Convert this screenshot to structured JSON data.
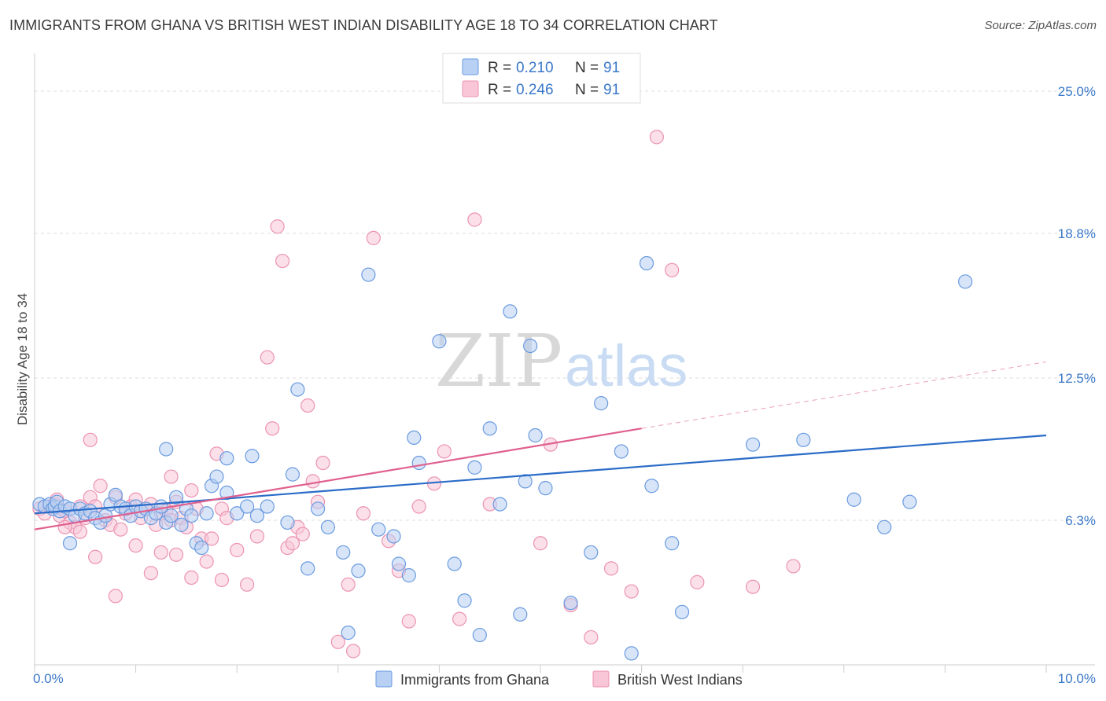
{
  "header": {
    "title": "IMMIGRANTS FROM GHANA VS BRITISH WEST INDIAN DISABILITY AGE 18 TO 34 CORRELATION CHART",
    "source": "Source: ZipAtlas.com"
  },
  "watermark": {
    "zip": "ZIP",
    "atlas": "atlas"
  },
  "chart_data": {
    "type": "scatter",
    "title": "IMMIGRANTS FROM GHANA VS BRITISH WEST INDIAN DISABILITY AGE 18 TO 34 CORRELATION CHART",
    "xlabel": "",
    "ylabel": "Disability Age 18 to 34",
    "xlim": [
      0,
      10
    ],
    "ylim": [
      0,
      26.3
    ],
    "x_tick_labels": [
      "0.0%",
      "10.0%"
    ],
    "y_ticks": [
      6.3,
      12.5,
      18.8,
      25.0
    ],
    "y_tick_labels": [
      "6.3%",
      "12.5%",
      "18.8%",
      "25.0%"
    ],
    "grid": true,
    "legend_top": {
      "placement": "top-center",
      "entries": [
        {
          "r_label": "R =",
          "r_value": "0.210",
          "n_label": "N =",
          "n_value": "91"
        },
        {
          "r_label": "R =",
          "r_value": "0.246",
          "n_label": "N =",
          "n_value": "91"
        }
      ]
    },
    "legend_bottom": {
      "placement": "bottom-center"
    },
    "series": [
      {
        "name": "Immigrants from Ghana",
        "color": "#6a9be0",
        "fill": "#b8d0f3",
        "trend": {
          "x": [
            0,
            10
          ],
          "y": [
            6.6,
            10.0
          ],
          "color": "#2b6cc8"
        },
        "points": [
          [
            0.05,
            7.0
          ],
          [
            0.1,
            6.9
          ],
          [
            0.15,
            7.0
          ],
          [
            0.18,
            6.8
          ],
          [
            0.2,
            6.9
          ],
          [
            0.22,
            7.1
          ],
          [
            0.25,
            6.7
          ],
          [
            0.3,
            6.9
          ],
          [
            0.35,
            6.8
          ],
          [
            0.4,
            6.5
          ],
          [
            0.45,
            6.8
          ],
          [
            0.5,
            6.6
          ],
          [
            0.55,
            6.7
          ],
          [
            0.6,
            6.4
          ],
          [
            0.65,
            6.2
          ],
          [
            0.7,
            6.5
          ],
          [
            0.75,
            7.0
          ],
          [
            0.8,
            7.4
          ],
          [
            0.85,
            6.9
          ],
          [
            0.9,
            6.8
          ],
          [
            0.95,
            6.5
          ],
          [
            1.0,
            6.9
          ],
          [
            1.05,
            6.7
          ],
          [
            1.1,
            6.8
          ],
          [
            1.15,
            6.4
          ],
          [
            1.2,
            6.6
          ],
          [
            1.25,
            6.9
          ],
          [
            1.3,
            6.2
          ],
          [
            1.35,
            6.5
          ],
          [
            1.4,
            7.3
          ],
          [
            1.45,
            6.1
          ],
          [
            1.5,
            6.8
          ],
          [
            1.55,
            6.5
          ],
          [
            1.6,
            5.3
          ],
          [
            1.65,
            5.1
          ],
          [
            1.7,
            6.6
          ],
          [
            1.75,
            7.8
          ],
          [
            1.8,
            8.2
          ],
          [
            1.9,
            7.5
          ],
          [
            2.0,
            6.6
          ],
          [
            2.1,
            6.9
          ],
          [
            2.2,
            6.5
          ],
          [
            2.3,
            6.9
          ],
          [
            2.5,
            6.2
          ],
          [
            2.55,
            8.3
          ],
          [
            2.6,
            12.0
          ],
          [
            2.7,
            4.2
          ],
          [
            2.8,
            6.8
          ],
          [
            2.9,
            6.0
          ],
          [
            3.05,
            4.9
          ],
          [
            3.1,
            1.4
          ],
          [
            3.2,
            4.1
          ],
          [
            3.3,
            17.0
          ],
          [
            3.4,
            5.9
          ],
          [
            3.55,
            5.6
          ],
          [
            3.6,
            4.4
          ],
          [
            3.7,
            3.9
          ],
          [
            3.75,
            9.9
          ],
          [
            3.8,
            8.8
          ],
          [
            4.0,
            14.1
          ],
          [
            4.15,
            4.4
          ],
          [
            4.25,
            2.8
          ],
          [
            4.35,
            8.6
          ],
          [
            4.4,
            1.3
          ],
          [
            4.5,
            10.3
          ],
          [
            4.6,
            7.0
          ],
          [
            4.7,
            15.4
          ],
          [
            4.8,
            2.2
          ],
          [
            4.85,
            8.0
          ],
          [
            4.9,
            13.9
          ],
          [
            4.95,
            10.0
          ],
          [
            5.05,
            7.7
          ],
          [
            5.3,
            2.7
          ],
          [
            5.5,
            4.9
          ],
          [
            5.6,
            11.4
          ],
          [
            5.8,
            9.3
          ],
          [
            5.9,
            0.5
          ],
          [
            6.05,
            17.5
          ],
          [
            6.1,
            7.8
          ],
          [
            6.3,
            5.3
          ],
          [
            6.4,
            2.3
          ],
          [
            7.1,
            9.6
          ],
          [
            7.6,
            9.8
          ],
          [
            8.1,
            7.2
          ],
          [
            8.4,
            6.0
          ],
          [
            8.65,
            7.1
          ],
          [
            9.2,
            16.7
          ],
          [
            0.35,
            5.3
          ],
          [
            1.3,
            9.4
          ],
          [
            2.15,
            9.1
          ],
          [
            1.9,
            9.0
          ]
        ]
      },
      {
        "name": "British West Indians",
        "color": "#ec93b2",
        "fill": "#f8c6d7",
        "trend": {
          "x": [
            0,
            6
          ],
          "y": [
            5.9,
            10.3
          ],
          "color": "#e0608f"
        },
        "trend_extension": {
          "x": [
            6,
            10
          ],
          "y": [
            10.3,
            13.2
          ]
        },
        "points": [
          [
            0.05,
            6.8
          ],
          [
            0.1,
            6.6
          ],
          [
            0.15,
            6.9
          ],
          [
            0.2,
            7.0
          ],
          [
            0.22,
            7.2
          ],
          [
            0.25,
            6.5
          ],
          [
            0.3,
            6.7
          ],
          [
            0.35,
            6.2
          ],
          [
            0.4,
            6.0
          ],
          [
            0.45,
            5.8
          ],
          [
            0.5,
            6.4
          ],
          [
            0.55,
            7.3
          ],
          [
            0.6,
            6.9
          ],
          [
            0.65,
            7.8
          ],
          [
            0.7,
            6.3
          ],
          [
            0.75,
            6.1
          ],
          [
            0.8,
            7.3
          ],
          [
            0.85,
            5.9
          ],
          [
            0.9,
            6.6
          ],
          [
            0.95,
            6.9
          ],
          [
            1.0,
            7.2
          ],
          [
            1.05,
            6.4
          ],
          [
            1.1,
            6.8
          ],
          [
            1.15,
            7.0
          ],
          [
            1.2,
            6.1
          ],
          [
            1.25,
            6.6
          ],
          [
            1.3,
            6.7
          ],
          [
            1.35,
            6.3
          ],
          [
            1.4,
            7.1
          ],
          [
            1.45,
            6.4
          ],
          [
            1.5,
            6.0
          ],
          [
            1.55,
            7.6
          ],
          [
            1.6,
            6.8
          ],
          [
            1.65,
            5.5
          ],
          [
            1.7,
            4.5
          ],
          [
            1.75,
            5.5
          ],
          [
            1.8,
            9.2
          ],
          [
            1.85,
            6.8
          ],
          [
            1.9,
            6.4
          ],
          [
            2.0,
            5.0
          ],
          [
            2.1,
            3.5
          ],
          [
            2.2,
            5.6
          ],
          [
            2.3,
            13.4
          ],
          [
            2.35,
            10.3
          ],
          [
            2.4,
            19.1
          ],
          [
            2.45,
            17.6
          ],
          [
            2.5,
            5.1
          ],
          [
            2.55,
            5.3
          ],
          [
            2.6,
            6.0
          ],
          [
            2.7,
            11.3
          ],
          [
            2.75,
            8.0
          ],
          [
            2.8,
            7.1
          ],
          [
            2.85,
            8.8
          ],
          [
            3.0,
            1.0
          ],
          [
            3.1,
            3.5
          ],
          [
            3.15,
            0.6
          ],
          [
            3.25,
            6.6
          ],
          [
            3.35,
            18.6
          ],
          [
            3.5,
            5.4
          ],
          [
            3.6,
            4.1
          ],
          [
            3.7,
            1.9
          ],
          [
            3.8,
            6.9
          ],
          [
            3.95,
            7.9
          ],
          [
            4.05,
            9.3
          ],
          [
            4.2,
            2.0
          ],
          [
            4.35,
            19.4
          ],
          [
            4.5,
            7.0
          ],
          [
            5.0,
            5.3
          ],
          [
            5.1,
            9.6
          ],
          [
            5.3,
            2.6
          ],
          [
            5.5,
            1.2
          ],
          [
            5.7,
            4.2
          ],
          [
            5.9,
            3.2
          ],
          [
            6.15,
            23.0
          ],
          [
            6.3,
            17.2
          ],
          [
            6.55,
            3.6
          ],
          [
            7.1,
            3.4
          ],
          [
            7.5,
            4.3
          ],
          [
            1.0,
            5.2
          ],
          [
            0.55,
            9.8
          ],
          [
            0.8,
            3.0
          ],
          [
            1.4,
            4.8
          ],
          [
            0.45,
            6.9
          ],
          [
            1.55,
            3.8
          ],
          [
            1.15,
            4.0
          ],
          [
            1.25,
            4.9
          ],
          [
            1.85,
            3.7
          ],
          [
            2.65,
            5.7
          ],
          [
            1.35,
            8.2
          ],
          [
            0.6,
            4.7
          ],
          [
            0.3,
            6.0
          ]
        ]
      }
    ]
  },
  "legend_bottom_labels": [
    "Immigrants from Ghana",
    "British West Indians"
  ]
}
